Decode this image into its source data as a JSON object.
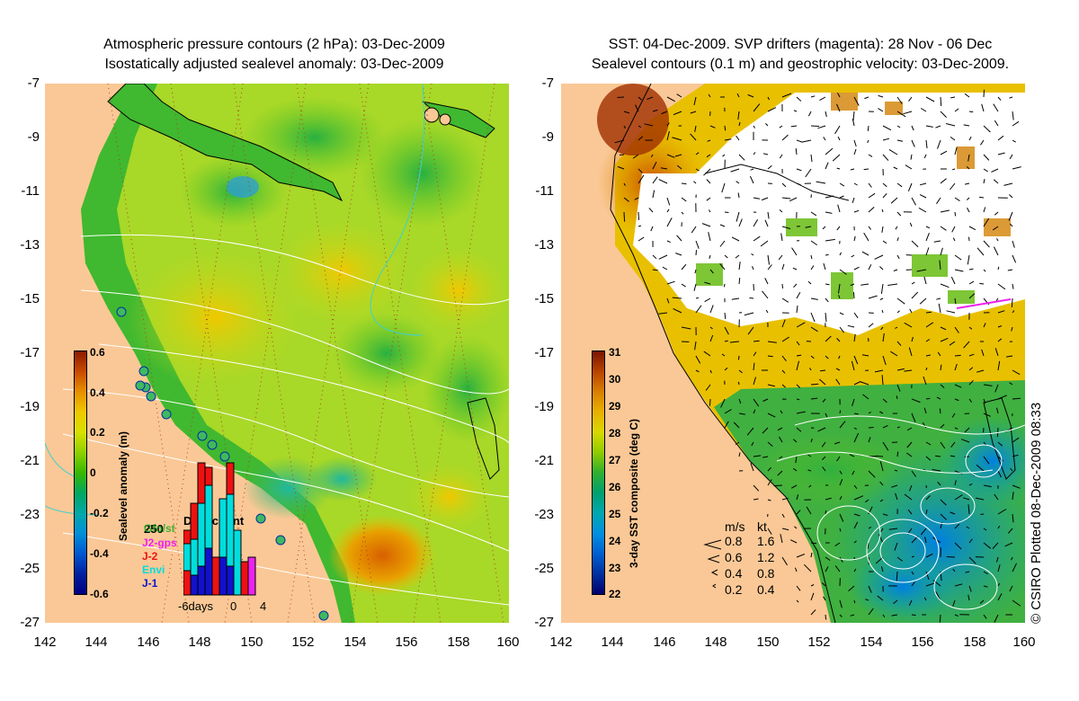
{
  "left_panel": {
    "title_line1": "Atmospheric pressure contours (2 hPa): 03-Dec-2009",
    "title_line2": "Isostatically adjusted sealevel anomaly: 03-Dec-2009",
    "y_ticks": [
      "-7",
      "-9",
      "-11",
      "-13",
      "-15",
      "-17",
      "-19",
      "-21",
      "-23",
      "-25",
      "-27"
    ],
    "x_ticks": [
      "142",
      "144",
      "146",
      "148",
      "150",
      "152",
      "154",
      "156",
      "158",
      "160"
    ],
    "colorbar": {
      "label": "Sealevel anomaly (m)",
      "ticks": [
        "0.6",
        "0.4",
        "0.2",
        "0",
        "-0.2",
        "-0.4",
        "-0.6"
      ],
      "colors": [
        "#8b1a00",
        "#c84a00",
        "#e89000",
        "#f0c800",
        "#d8e000",
        "#90d000",
        "#38b800",
        "#00a860",
        "#00a8a8",
        "#0090d8",
        "#0058d0",
        "#0020a0",
        "#000080"
      ]
    },
    "data_count": {
      "title": "Data count",
      "max_label": "250",
      "x_labels": [
        "-6days",
        "0",
        "4"
      ],
      "satellites": [
        {
          "name": "Gfo/st",
          "color": "#22aa22"
        },
        {
          "name": "J2-gps",
          "color": "#ee22ee"
        },
        {
          "name": "J-2",
          "color": "#ee1111"
        },
        {
          "name": "Envi",
          "color": "#00dddd"
        },
        {
          "name": "J-1",
          "color": "#1111cc"
        }
      ]
    }
  },
  "right_panel": {
    "title_line1": "SST: 04-Dec-2009. SVP drifters (magenta): 28 Nov - 06 Dec",
    "title_line2": "Sealevel contours (0.1 m) and geostrophic velocity: 03-Dec-2009.",
    "y_ticks": [
      "-7",
      "-9",
      "-11",
      "-13",
      "-15",
      "-17",
      "-19",
      "-21",
      "-23",
      "-25",
      "-27"
    ],
    "x_ticks": [
      "142",
      "144",
      "146",
      "148",
      "150",
      "152",
      "154",
      "156",
      "158",
      "160"
    ],
    "colorbar": {
      "label": "3-day SST composite (deg C)",
      "ticks": [
        "31",
        "30",
        "29",
        "28",
        "27",
        "26",
        "25",
        "24",
        "23",
        "22"
      ],
      "colors": [
        "#7a1400",
        "#b84400",
        "#d88000",
        "#e8b000",
        "#d8d800",
        "#90cc00",
        "#30b030",
        "#00a070",
        "#00a8b0",
        "#0090e0",
        "#0060d0",
        "#0030a0",
        "#000070"
      ]
    },
    "speed_legend": {
      "header_ms": "m/s",
      "header_kt": "kt",
      "rows": [
        {
          "ms": "0.8",
          "kt": "1.6"
        },
        {
          "ms": "0.6",
          "kt": "1.2"
        },
        {
          "ms": "0.4",
          "kt": "0.8"
        },
        {
          "ms": "0.2",
          "kt": "0.4"
        }
      ]
    }
  },
  "credit": "© CSIRO Plotted 08-Dec-2009 08:33",
  "colors": {
    "land": "#fac896",
    "white_cloud": "#ffffff",
    "coast": "#000000",
    "contour": "#ffffff",
    "cyan_contour": "#40d0d0"
  }
}
